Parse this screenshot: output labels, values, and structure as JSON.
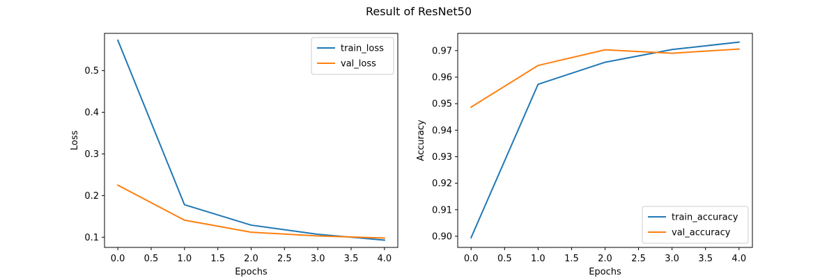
{
  "figure": {
    "title": "Result of ResNet50"
  },
  "chart_data": [
    {
      "type": "line",
      "title": "",
      "xlabel": "Epochs",
      "ylabel": "Loss",
      "x": [
        0,
        1,
        2,
        3,
        4
      ],
      "xlim": [
        -0.2,
        4.2
      ],
      "ylim": [
        0.0755,
        0.5895
      ],
      "xticks": [
        0.0,
        0.5,
        1.0,
        1.5,
        2.0,
        2.5,
        3.0,
        3.5,
        4.0
      ],
      "xtick_labels": [
        "0.0",
        "0.5",
        "1.0",
        "1.5",
        "2.0",
        "2.5",
        "3.0",
        "3.5",
        "4.0"
      ],
      "yticks": [
        0.1,
        0.2,
        0.3,
        0.4,
        0.5
      ],
      "ytick_labels": [
        "0.1",
        "0.2",
        "0.3",
        "0.4",
        "0.5"
      ],
      "grid": false,
      "legend_position": "top-right",
      "series": [
        {
          "name": "train_loss",
          "color": "#1f77b4",
          "values": [
            0.573,
            0.178,
            0.129,
            0.107,
            0.093
          ]
        },
        {
          "name": "val_loss",
          "color": "#ff7f0e",
          "values": [
            0.225,
            0.141,
            0.112,
            0.103,
            0.098
          ]
        }
      ]
    },
    {
      "type": "line",
      "title": "",
      "xlabel": "Epochs",
      "ylabel": "Accuracy",
      "x": [
        0,
        1,
        2,
        3,
        4
      ],
      "xlim": [
        -0.2,
        4.2
      ],
      "ylim": [
        0.8958,
        0.9765
      ],
      "xticks": [
        0.0,
        0.5,
        1.0,
        1.5,
        2.0,
        2.5,
        3.0,
        3.5,
        4.0
      ],
      "xtick_labels": [
        "0.0",
        "0.5",
        "1.0",
        "1.5",
        "2.0",
        "2.5",
        "3.0",
        "3.5",
        "4.0"
      ],
      "yticks": [
        0.9,
        0.91,
        0.92,
        0.93,
        0.94,
        0.95,
        0.96,
        0.97
      ],
      "ytick_labels": [
        "0.90",
        "0.91",
        "0.92",
        "0.93",
        "0.94",
        "0.95",
        "0.96",
        "0.97"
      ],
      "grid": false,
      "legend_position": "bottom-right",
      "series": [
        {
          "name": "train_accuracy",
          "color": "#1f77b4",
          "values": [
            0.8995,
            0.9573,
            0.9656,
            0.9704,
            0.9732
          ]
        },
        {
          "name": "val_accuracy",
          "color": "#ff7f0e",
          "values": [
            0.9487,
            0.9644,
            0.9703,
            0.969,
            0.9706
          ]
        }
      ]
    }
  ]
}
